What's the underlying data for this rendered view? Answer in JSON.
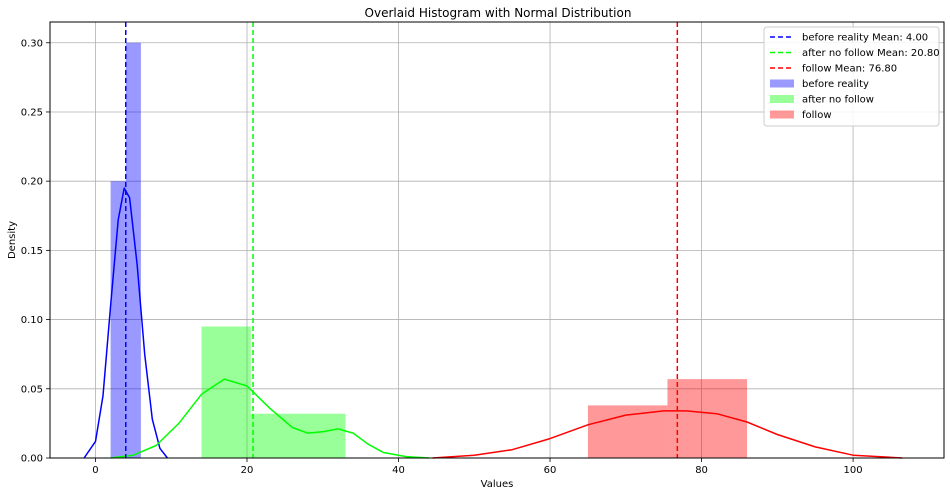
{
  "chart_data": {
    "type": "bar",
    "title": "Overlaid Histogram with Normal Distribution",
    "xlabel": "Values",
    "ylabel": "Density",
    "xlim": [
      -6,
      112
    ],
    "ylim": [
      0,
      0.315
    ],
    "xticks": [
      0,
      20,
      40,
      60,
      80,
      100
    ],
    "yticks": [
      0.0,
      0.05,
      0.1,
      0.15,
      0.2,
      0.25,
      0.3
    ],
    "xtick_labels": [
      "0",
      "20",
      "40",
      "60",
      "80",
      "100"
    ],
    "ytick_labels": [
      "0.00",
      "0.05",
      "0.10",
      "0.15",
      "0.20",
      "0.25",
      "0.30"
    ],
    "grid": true,
    "legend_position": "top-right",
    "series": [
      {
        "name": "before reality",
        "color": "#0000ff",
        "bar_alpha": 0.4,
        "mean": 4.0,
        "mean_label": "before reality Mean: 4.00",
        "bins": [
          {
            "x0": 2,
            "x1": 4,
            "density": 0.2
          },
          {
            "x0": 4,
            "x1": 6,
            "density": 0.3
          }
        ],
        "kde": [
          [
            -1.5,
            0.0
          ],
          [
            0.0,
            0.012
          ],
          [
            1.0,
            0.045
          ],
          [
            2.0,
            0.11
          ],
          [
            3.0,
            0.172
          ],
          [
            3.8,
            0.195
          ],
          [
            4.5,
            0.188
          ],
          [
            5.5,
            0.14
          ],
          [
            6.5,
            0.075
          ],
          [
            7.5,
            0.028
          ],
          [
            8.5,
            0.007
          ],
          [
            9.5,
            0.0
          ]
        ]
      },
      {
        "name": "after no follow",
        "color": "#00ff00",
        "bar_alpha": 0.4,
        "mean": 20.8,
        "mean_label": "after no follow Mean: 20.80",
        "bins": [
          {
            "x0": 14,
            "x1": 20.5,
            "density": 0.095
          },
          {
            "x0": 20.5,
            "x1": 33,
            "density": 0.032
          }
        ],
        "kde": [
          [
            2,
            0.0
          ],
          [
            5,
            0.002
          ],
          [
            8,
            0.009
          ],
          [
            11,
            0.025
          ],
          [
            14,
            0.046
          ],
          [
            17,
            0.057
          ],
          [
            20,
            0.052
          ],
          [
            23,
            0.036
          ],
          [
            26,
            0.022
          ],
          [
            28,
            0.018
          ],
          [
            30,
            0.019
          ],
          [
            32,
            0.021
          ],
          [
            34,
            0.018
          ],
          [
            36,
            0.01
          ],
          [
            38,
            0.004
          ],
          [
            41,
            0.001
          ],
          [
            44,
            0.0
          ]
        ]
      },
      {
        "name": "follow",
        "color": "#ff0000",
        "bar_alpha": 0.4,
        "mean": 76.8,
        "mean_label": "follow Mean: 76.80",
        "bins": [
          {
            "x0": 65,
            "x1": 75.5,
            "density": 0.038
          },
          {
            "x0": 75.5,
            "x1": 86,
            "density": 0.057
          }
        ],
        "kde": [
          [
            44.5,
            0.0
          ],
          [
            50,
            0.002
          ],
          [
            55,
            0.006
          ],
          [
            60,
            0.014
          ],
          [
            65,
            0.024
          ],
          [
            70,
            0.031
          ],
          [
            75,
            0.034
          ],
          [
            78,
            0.034
          ],
          [
            82,
            0.032
          ],
          [
            86,
            0.026
          ],
          [
            90,
            0.017
          ],
          [
            95,
            0.008
          ],
          [
            100,
            0.002
          ],
          [
            106.5,
            0.0
          ]
        ]
      }
    ]
  }
}
